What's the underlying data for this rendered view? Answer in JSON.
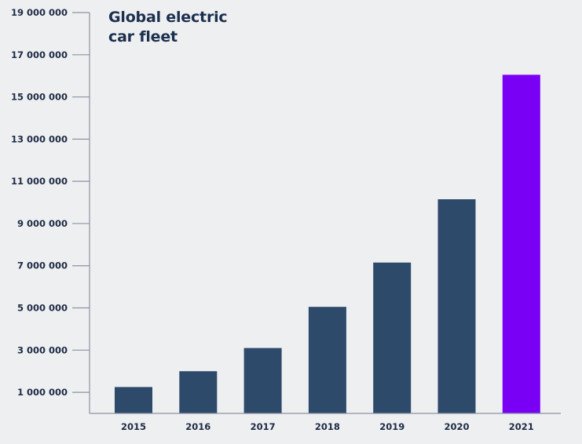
{
  "chart_data": {
    "type": "bar",
    "title": "Global electric\ncar fleet",
    "categories": [
      "2015",
      "2016",
      "2017",
      "2018",
      "2019",
      "2020",
      "2021"
    ],
    "values": [
      1250000,
      2000000,
      3100000,
      5050000,
      7150000,
      10150000,
      16050000
    ],
    "ylim": [
      0,
      19000000
    ],
    "yticks": [
      1000000,
      3000000,
      5000000,
      7000000,
      9000000,
      11000000,
      13000000,
      15000000,
      17000000,
      19000000
    ],
    "ytick_labels": [
      "1 000 000",
      "3 000 000",
      "5 000 000",
      "7 000 000",
      "9 000 000",
      "11 000 000",
      "13 000 000",
      "15 000 000",
      "17 000 000",
      "19 000 000"
    ],
    "xlabel": "",
    "ylabel": "",
    "grid": false,
    "legend": "none",
    "colors": {
      "default_bar": "#2e4a6b",
      "highlight_bar": "#7a00f5",
      "highlight_category": "2021",
      "axis": "#8a93a3",
      "text": "#1d2b44"
    }
  }
}
